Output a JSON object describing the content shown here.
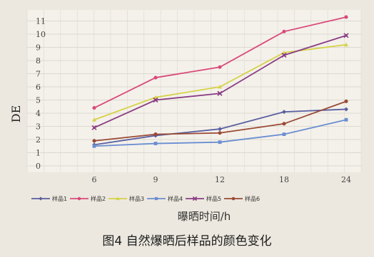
{
  "chart_data": {
    "type": "line",
    "title": "",
    "xlabel": "曝晒时间/h",
    "ylabel": "DE",
    "x": [
      "6",
      "9",
      "12",
      "18",
      "24"
    ],
    "ylim": [
      0,
      11
    ],
    "yticks": [
      "0",
      "1",
      "2",
      "3",
      "4",
      "5",
      "6",
      "7",
      "8",
      "9",
      "10",
      "11"
    ],
    "grid": true,
    "legend_position": "bottom",
    "series": [
      {
        "name": "样品1",
        "color": "#5a5fa0",
        "marker": "diamond",
        "values": [
          1.6,
          2.3,
          2.8,
          4.1,
          4.3
        ]
      },
      {
        "name": "样品2",
        "color": "#d94a7a",
        "marker": "circle",
        "values": [
          4.4,
          6.7,
          7.5,
          10.2,
          11.3
        ]
      },
      {
        "name": "样品3",
        "color": "#d6d24a",
        "marker": "triangle",
        "values": [
          3.5,
          5.2,
          6.0,
          8.6,
          9.2
        ]
      },
      {
        "name": "样品4",
        "color": "#6a8ed0",
        "marker": "square",
        "values": [
          1.5,
          1.7,
          1.8,
          2.4,
          3.5
        ]
      },
      {
        "name": "样品5",
        "color": "#8a3e84",
        "marker": "cross",
        "values": [
          2.9,
          5.0,
          5.5,
          8.4,
          9.9
        ]
      },
      {
        "name": "样品6",
        "color": "#9a4a35",
        "marker": "circle",
        "values": [
          1.9,
          2.4,
          2.5,
          3.2,
          4.9
        ]
      }
    ]
  },
  "caption": "图4 自然爆晒后样品的颜色变化"
}
